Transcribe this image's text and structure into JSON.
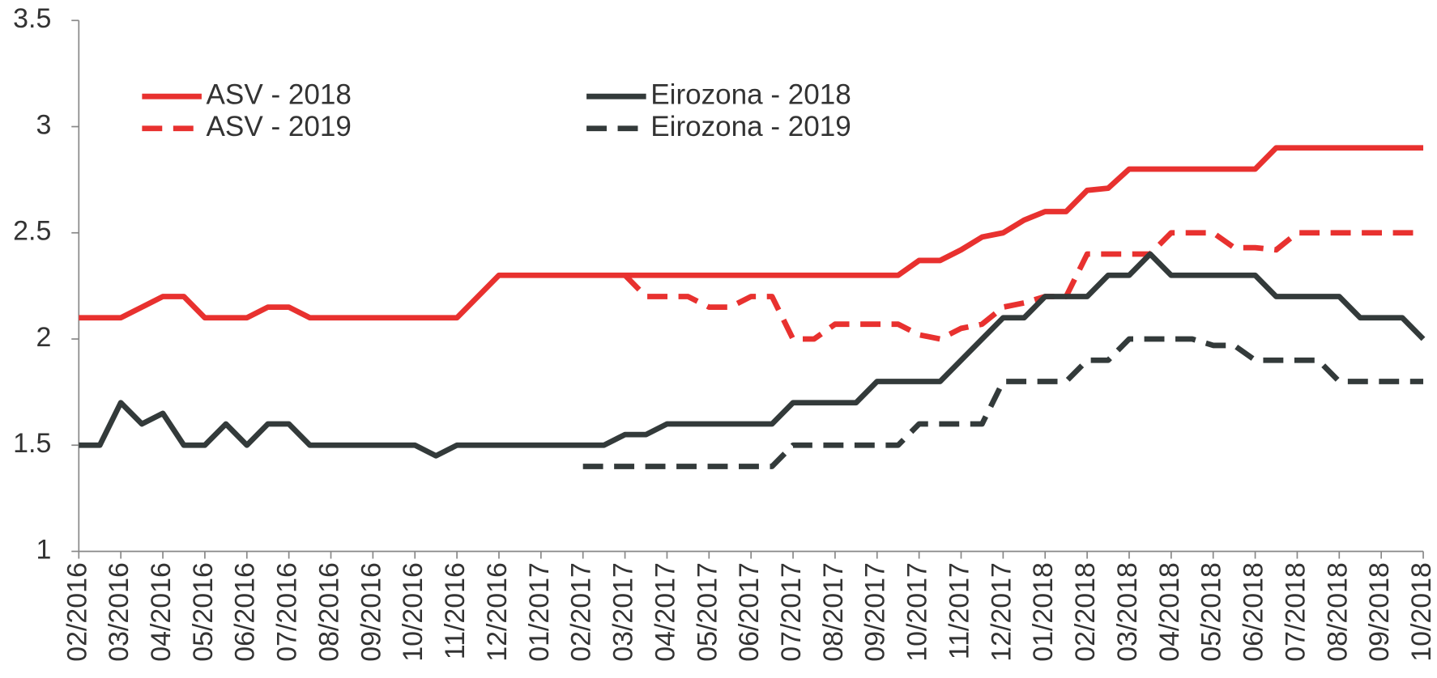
{
  "chart_data": {
    "type": "line",
    "categories": [
      "02/2016",
      null,
      "03/2016",
      null,
      "04/2016",
      null,
      "05/2016",
      null,
      "06/2016",
      null,
      "07/2016",
      null,
      "08/2016",
      null,
      "09/2016",
      null,
      "10/2016",
      null,
      "11/2016",
      null,
      "12/2016",
      null,
      "01/2017",
      null,
      "02/2017",
      null,
      "03/2017",
      null,
      "04/2017",
      null,
      "05/2017",
      null,
      "06/2017",
      null,
      "07/2017",
      null,
      "08/2017",
      null,
      "09/2017",
      null,
      "10/2017",
      null,
      "11/2017",
      null,
      "12/2017",
      null,
      "01/2018",
      null,
      "02/2018",
      null,
      "03/2018",
      null,
      "04/2018",
      null,
      "05/2018",
      null,
      "06/2018",
      null,
      "07/2018",
      null,
      "08/2018",
      null,
      "09/2018",
      null,
      "10/2018"
    ],
    "series": [
      {
        "name": "ASV - 2018",
        "color": "#e8312f",
        "line_style": "solid",
        "values": [
          2.1,
          2.1,
          2.1,
          2.15,
          2.2,
          2.2,
          2.1,
          2.1,
          2.1,
          2.15,
          2.15,
          2.1,
          2.1,
          2.1,
          2.1,
          2.1,
          2.1,
          2.1,
          2.1,
          2.2,
          2.3,
          2.3,
          2.3,
          2.3,
          2.3,
          2.3,
          2.3,
          2.3,
          2.3,
          2.3,
          2.3,
          2.3,
          2.3,
          2.3,
          2.3,
          2.3,
          2.3,
          2.3,
          2.3,
          2.3,
          2.37,
          2.37,
          2.42,
          2.48,
          2.5,
          2.56,
          2.6,
          2.6,
          2.7,
          2.71,
          2.8,
          2.8,
          2.8,
          2.8,
          2.8,
          2.8,
          2.8,
          2.9,
          2.9,
          2.9,
          2.9,
          2.9,
          2.9,
          2.9,
          2.9
        ]
      },
      {
        "name": "ASV - 2019",
        "color": "#e8312f",
        "line_style": "dashed",
        "values": [
          null,
          null,
          null,
          null,
          null,
          null,
          null,
          null,
          null,
          null,
          null,
          null,
          null,
          null,
          null,
          null,
          null,
          null,
          null,
          null,
          null,
          null,
          null,
          null,
          null,
          null,
          2.3,
          2.2,
          2.2,
          2.2,
          2.15,
          2.15,
          2.2,
          2.2,
          2.0,
          2.0,
          2.07,
          2.07,
          2.07,
          2.07,
          2.02,
          2.0,
          2.05,
          2.07,
          2.15,
          2.17,
          2.2,
          2.2,
          2.4,
          2.4,
          2.4,
          2.4,
          2.5,
          2.5,
          2.5,
          2.43,
          2.43,
          2.42,
          2.5,
          2.5,
          2.5,
          2.5,
          2.5,
          2.5,
          2.5
        ]
      },
      {
        "name": "Eirozona - 2018",
        "color": "#333a3a",
        "line_style": "solid",
        "values": [
          1.5,
          1.5,
          1.7,
          1.6,
          1.65,
          1.5,
          1.5,
          1.6,
          1.5,
          1.6,
          1.6,
          1.5,
          1.5,
          1.5,
          1.5,
          1.5,
          1.5,
          1.45,
          1.5,
          1.5,
          1.5,
          1.5,
          1.5,
          1.5,
          1.5,
          1.5,
          1.55,
          1.55,
          1.6,
          1.6,
          1.6,
          1.6,
          1.6,
          1.6,
          1.7,
          1.7,
          1.7,
          1.7,
          1.8,
          1.8,
          1.8,
          1.8,
          1.9,
          2.0,
          2.1,
          2.1,
          2.2,
          2.2,
          2.2,
          2.3,
          2.3,
          2.4,
          2.3,
          2.3,
          2.3,
          2.3,
          2.3,
          2.2,
          2.2,
          2.2,
          2.2,
          2.1,
          2.1,
          2.1,
          2.0
        ]
      },
      {
        "name": "Eirozona - 2019",
        "color": "#333a3a",
        "line_style": "dashed",
        "values": [
          null,
          null,
          null,
          null,
          null,
          null,
          null,
          null,
          null,
          null,
          null,
          null,
          null,
          null,
          null,
          null,
          null,
          null,
          null,
          null,
          null,
          null,
          null,
          null,
          1.4,
          1.4,
          1.4,
          1.4,
          1.4,
          1.4,
          1.4,
          1.4,
          1.4,
          1.4,
          1.5,
          1.5,
          1.5,
          1.5,
          1.5,
          1.5,
          1.6,
          1.6,
          1.6,
          1.6,
          1.8,
          1.8,
          1.8,
          1.8,
          1.9,
          1.9,
          2.0,
          2.0,
          2.0,
          2.0,
          1.97,
          1.97,
          1.9,
          1.9,
          1.9,
          1.9,
          1.8,
          1.8,
          1.8,
          1.8,
          1.8
        ]
      }
    ],
    "ylim": [
      1,
      3.5
    ],
    "yticks": [
      1,
      1.5,
      2,
      2.5,
      3,
      3.5
    ],
    "grid": false
  }
}
